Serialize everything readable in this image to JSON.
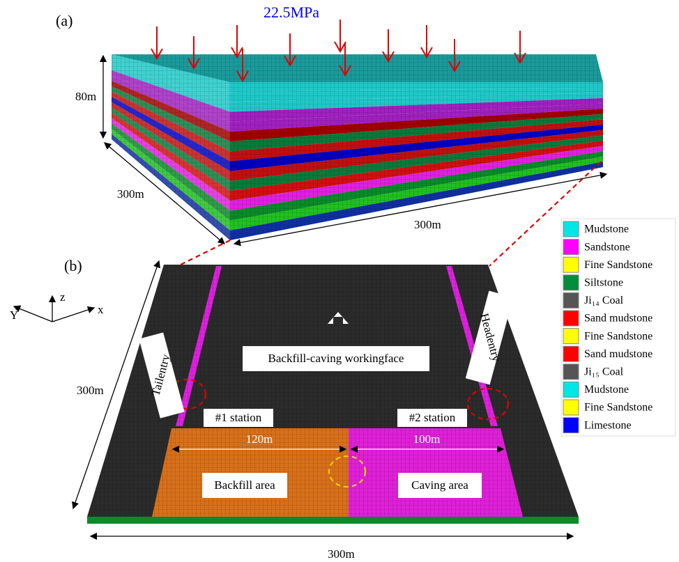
{
  "panel_a": {
    "label": "(a)",
    "load": "22.5MPa",
    "height": "80m",
    "width_left": "300m",
    "width_front": "300m"
  },
  "panel_b": {
    "label": "(b)",
    "axis_z": "z",
    "axis_y": "Y",
    "axis_x": "x",
    "length_left": "300m",
    "length_bottom": "300m",
    "tailentry": "Tailentry",
    "headentry": "Headentry",
    "workingface": "Backfill-caving workingface",
    "station_1": "#1 station",
    "station_2": "#2 station",
    "backfill_width": "120m",
    "caving_width": "100m",
    "backfill_area": "Backfill area",
    "caving_area": "Caving area"
  },
  "legend": [
    {
      "name": "Mudstone",
      "color": "#00e5e5"
    },
    {
      "name": "Sandstone",
      "color": "#ff00ff"
    },
    {
      "name": "Fine Sandstone",
      "color": "#ffff00"
    },
    {
      "name": "Siltstone",
      "color": "#008c3a"
    },
    {
      "name": "Ji₁₄ Coal",
      "color": "#555555"
    },
    {
      "name": "Sand mudstone",
      "color": "#ff0000"
    },
    {
      "name": "Fine Sandstone",
      "color": "#ffff00"
    },
    {
      "name": "Sand mudstone",
      "color": "#ff0000"
    },
    {
      "name": "Ji₁₅ Coal",
      "color": "#555555"
    },
    {
      "name": "Mudstone",
      "color": "#00e5e5"
    },
    {
      "name": "Fine Sandstone",
      "color": "#ffff00"
    },
    {
      "name": "Limestone",
      "color": "#0000ff"
    }
  ]
}
